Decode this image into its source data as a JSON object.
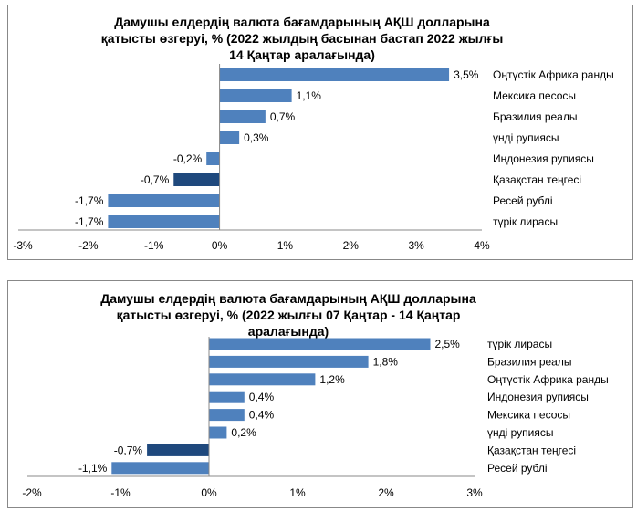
{
  "chart_data": [
    {
      "type": "bar",
      "orientation": "horizontal",
      "title": "Дамушы елдердің валюта бағамдарының АҚШ долларына қатысты өзгеруі, %  (2022 жылдың басынан бастап 2022 жылғы 14 Қаңтар аралағында)",
      "categories": [
        "Оңтүстік Африка ранды",
        "Мексика песосы",
        "Бразилия реалы",
        "үнді рупиясы",
        "Индонезия рупиясы",
        "Қазақстан теңгесі",
        "Ресей рублі",
        "түрік лирасы"
      ],
      "values": [
        3.5,
        1.1,
        0.7,
        0.3,
        -0.2,
        -0.7,
        -1.7,
        -1.7
      ],
      "data_labels": [
        "3,5%",
        "1,1%",
        "0,7%",
        "0,3%",
        "-0,2%",
        "-0,7%",
        "-1,7%",
        "-1,7%"
      ],
      "highlight": "Қазақстан теңгесі",
      "xlim": [
        -3,
        4
      ],
      "x_ticks": [
        "-3%",
        "-2%",
        "-1%",
        "0%",
        "1%",
        "2%",
        "3%",
        "4%"
      ],
      "grid": false,
      "colors": {
        "bar": "#4f81bd",
        "highlight": "#1f497d"
      }
    },
    {
      "type": "bar",
      "orientation": "horizontal",
      "title": "Дамушы елдердің валюта бағамдарының АҚШ долларына қатысты өзгеруі, %  (2022 жылғы 07 Қаңтар - 14 Қаңтар аралағында)",
      "categories": [
        "түрік лирасы",
        "Бразилия реалы",
        "Оңтүстік Африка ранды",
        "Индонезия рупиясы",
        "Мексика песосы",
        "үнді рупиясы",
        "Қазақстан теңгесі",
        "Ресей рублі"
      ],
      "values": [
        2.5,
        1.8,
        1.2,
        0.4,
        0.4,
        0.2,
        -0.7,
        -1.1
      ],
      "data_labels": [
        "2,5%",
        "1,8%",
        "1,2%",
        "0,4%",
        "0,4%",
        "0,2%",
        "-0,7%",
        "-1,1%"
      ],
      "highlight": "Қазақстан теңгесі",
      "xlim": [
        -2,
        3
      ],
      "x_ticks": [
        "-2%",
        "-1%",
        "0%",
        "1%",
        "2%",
        "3%"
      ],
      "grid": false,
      "colors": {
        "bar": "#4f81bd",
        "highlight": "#1f497d"
      }
    }
  ]
}
